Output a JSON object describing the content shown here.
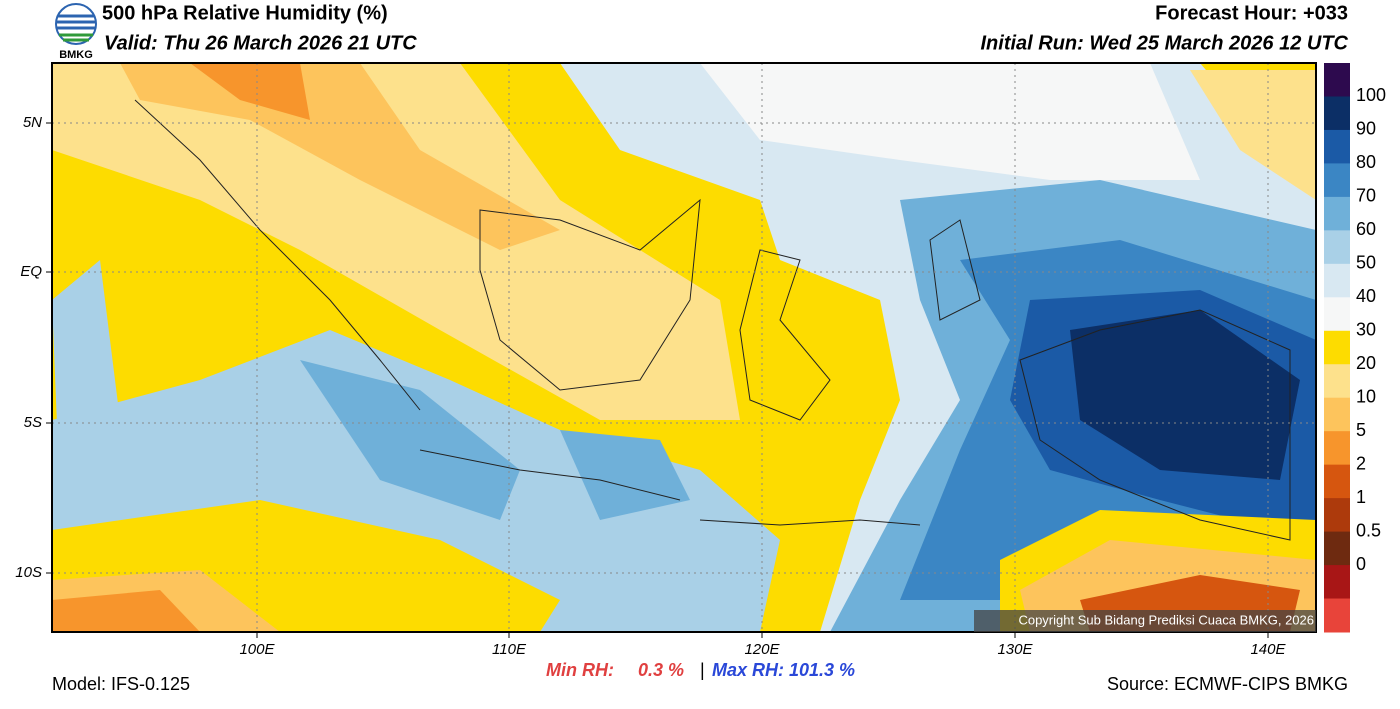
{
  "header": {
    "title": "500 hPa Relative Humidity (%)",
    "valid": "Valid: Thu 26 March 2026 21 UTC",
    "forecast_hour": "Forecast Hour: +033",
    "initial_run": "Initial Run: Wed 25 March 2026 12 UTC",
    "logo_text": "BMKG"
  },
  "map": {
    "lon_labels": [
      "100E",
      "110E",
      "120E",
      "130E",
      "140E"
    ],
    "lat_labels": [
      "5N",
      "EQ",
      "5S",
      "10S"
    ],
    "copyright": "Copyright Sub Bidang Prediksi Cuaca BMKG, 2026"
  },
  "colorbar": {
    "colors": [
      "#2d0a4e",
      "#0c2f66",
      "#1b5aa6",
      "#3b86c4",
      "#6fb0d9",
      "#a9d0e7",
      "#d8e8f2",
      "#f6f7f7",
      "#fddc00",
      "#fde18c",
      "#fdc45c",
      "#f7952c",
      "#d6560f",
      "#ad3a0c",
      "#6e2a10",
      "#a81616",
      "#e8443a"
    ],
    "labels": [
      100,
      90,
      80,
      70,
      60,
      50,
      40,
      30,
      20,
      10,
      5,
      2,
      1,
      0.5,
      0
    ]
  },
  "footer": {
    "model": "Model: IFS-0.125",
    "min_label": "Min RH:",
    "min_value": "0.3 %",
    "separator": "|",
    "max_label": "Max RH: 101.3 %",
    "source": "Source: ECMWF-CIPS BMKG"
  }
}
